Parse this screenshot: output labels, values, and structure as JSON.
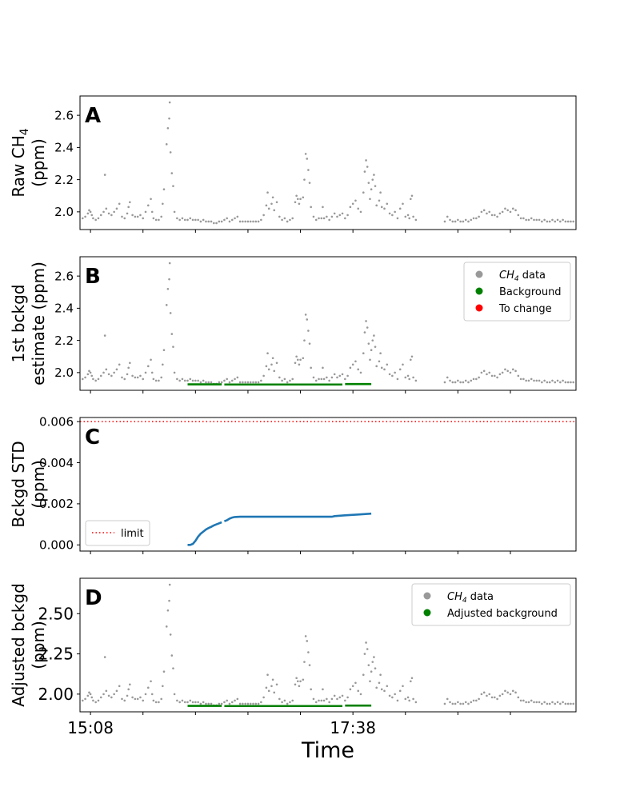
{
  "chart_data": [
    {
      "type": "scatter",
      "panel_letter": "A",
      "ylabel_lines": [
        "Raw CH",
        "(ppm)"
      ],
      "ylabel_sub": "4",
      "ylim": [
        1.89,
        2.72
      ],
      "yticks": [
        2.0,
        2.2,
        2.4,
        2.6
      ],
      "ytick_labels": [
        "2.0",
        "2.2",
        "2.4",
        "2.6"
      ],
      "xlim": [
        0,
        174
      ],
      "show_xtick_labels": false,
      "series": []
    },
    {
      "type": "scatter",
      "panel_letter": "B",
      "ylabel_lines": [
        "1st bckgd",
        "estimate (ppm)"
      ],
      "ylim": [
        1.89,
        2.72
      ],
      "yticks": [
        2.0,
        2.2,
        2.4,
        2.6
      ],
      "ytick_labels": [
        "2.0",
        "2.2",
        "2.4",
        "2.6"
      ],
      "xlim": [
        0,
        174
      ],
      "show_xtick_labels": false,
      "legend": {
        "placement": "top-right",
        "entries": [
          {
            "label": "data",
            "label_prefix": "CH",
            "label_sub": "4",
            "color": "#999999"
          },
          {
            "label": "Background",
            "color": "#008000"
          },
          {
            "label": "To change",
            "color": "#ff0000"
          }
        ]
      },
      "series": []
    },
    {
      "type": "line",
      "panel_letter": "C",
      "ylabel_lines": [
        "Bckgd STD",
        "(ppm)"
      ],
      "ylim": [
        -0.0003,
        0.0062
      ],
      "yticks": [
        0.0,
        0.002,
        0.004,
        0.006
      ],
      "ytick_labels": [
        "0.000",
        "0.002",
        "0.004",
        "0.006"
      ],
      "xlim": [
        0,
        174
      ],
      "show_xtick_labels": false,
      "limit_value": 0.006,
      "legend": {
        "placement": "lower-left",
        "entries": [
          {
            "label": "limit",
            "color": "#ff0000",
            "style": "dotted"
          }
        ]
      },
      "series": []
    },
    {
      "type": "scatter",
      "panel_letter": "D",
      "ylabel_lines": [
        "Adjusted bckgd",
        "(ppm)"
      ],
      "ylim": [
        1.89,
        2.72
      ],
      "yticks": [
        2.0,
        2.25,
        2.5
      ],
      "ytick_labels": [
        "2.00",
        "2.25",
        "2.50"
      ],
      "xlim": [
        0,
        174
      ],
      "show_xtick_labels": true,
      "xlabel": "Time",
      "xticks": [
        3,
        23,
        43,
        63,
        83,
        103,
        123,
        143,
        163
      ],
      "xtick_labels": [
        "15:08",
        "",
        "",
        "",
        "",
        "17:38",
        "",
        "",
        ""
      ],
      "legend": {
        "placement": "top-right",
        "entries": [
          {
            "label": "data",
            "label_prefix": "CH",
            "label_sub": "4",
            "color": "#999999"
          },
          {
            "label": "Adjusted background",
            "color": "#008000"
          }
        ]
      },
      "series": []
    }
  ],
  "colors": {
    "data": "#999999",
    "background": "#008000",
    "to_change": "#ff0000",
    "std_line": "#1f77b4",
    "limit": "#ff0000"
  },
  "raw_points": [
    [
      0,
      1.96
    ],
    [
      1,
      1.97
    ],
    [
      2,
      1.99
    ],
    [
      2.5,
      2.01
    ],
    [
      3,
      2.0
    ],
    [
      3.5,
      1.98
    ],
    [
      4,
      1.96
    ],
    [
      5,
      1.95
    ],
    [
      6,
      1.96
    ],
    [
      7,
      1.98
    ],
    [
      8,
      2.0
    ],
    [
      8.5,
      2.23
    ],
    [
      9,
      2.02
    ],
    [
      10,
      1.99
    ],
    [
      11,
      1.98
    ],
    [
      12,
      2.0
    ],
    [
      13,
      2.02
    ],
    [
      14,
      2.05
    ],
    [
      15,
      1.97
    ],
    [
      16,
      1.96
    ],
    [
      17,
      1.99
    ],
    [
      17.5,
      2.03
    ],
    [
      18,
      2.06
    ],
    [
      19,
      1.98
    ],
    [
      20,
      1.97
    ],
    [
      21,
      1.97
    ],
    [
      22,
      1.98
    ],
    [
      23,
      1.96
    ],
    [
      24,
      2.0
    ],
    [
      25,
      2.04
    ],
    [
      26,
      2.08
    ],
    [
      26.5,
      2.0
    ],
    [
      27,
      1.96
    ],
    [
      28,
      1.95
    ],
    [
      29,
      1.95
    ],
    [
      30,
      1.97
    ],
    [
      30.5,
      2.05
    ],
    [
      31,
      2.14
    ],
    [
      32,
      2.42
    ],
    [
      32.5,
      2.52
    ],
    [
      33,
      2.58
    ],
    [
      33.2,
      2.68
    ],
    [
      33.5,
      2.37
    ],
    [
      34,
      2.24
    ],
    [
      34.5,
      2.16
    ],
    [
      35,
      2.0
    ],
    [
      36,
      1.96
    ],
    [
      37,
      1.95
    ],
    [
      38,
      1.96
    ],
    [
      39,
      1.95
    ],
    [
      40,
      1.95
    ],
    [
      41,
      1.96
    ],
    [
      42,
      1.95
    ],
    [
      43,
      1.95
    ],
    [
      44,
      1.95
    ],
    [
      45,
      1.94
    ],
    [
      46,
      1.95
    ],
    [
      47,
      1.94
    ],
    [
      48,
      1.94
    ],
    [
      49,
      1.94
    ],
    [
      50,
      1.93
    ],
    [
      51,
      1.93
    ],
    [
      52,
      1.94
    ],
    [
      53,
      1.94
    ],
    [
      54,
      1.95
    ],
    [
      55,
      1.96
    ],
    [
      56,
      1.94
    ],
    [
      57,
      1.95
    ],
    [
      58,
      1.96
    ],
    [
      59,
      1.97
    ],
    [
      60,
      1.94
    ],
    [
      61,
      1.94
    ],
    [
      62,
      1.94
    ],
    [
      63,
      1.94
    ],
    [
      64,
      1.94
    ],
    [
      65,
      1.94
    ],
    [
      66,
      1.94
    ],
    [
      67,
      1.94
    ],
    [
      68,
      1.95
    ],
    [
      69,
      1.98
    ],
    [
      70,
      2.04
    ],
    [
      70.5,
      2.12
    ],
    [
      71,
      2.02
    ],
    [
      72,
      2.05
    ],
    [
      72.5,
      2.09
    ],
    [
      73,
      2.01
    ],
    [
      74,
      2.06
    ],
    [
      75,
      1.97
    ],
    [
      76,
      1.95
    ],
    [
      77,
      1.96
    ],
    [
      78,
      1.94
    ],
    [
      79,
      1.95
    ],
    [
      80,
      1.96
    ],
    [
      81,
      2.06
    ],
    [
      81.5,
      2.1
    ],
    [
      82,
      2.08
    ],
    [
      82.5,
      2.05
    ],
    [
      83,
      2.08
    ],
    [
      84,
      2.09
    ],
    [
      84.5,
      2.2
    ],
    [
      85,
      2.36
    ],
    [
      85.5,
      2.33
    ],
    [
      86,
      2.26
    ],
    [
      86.5,
      2.18
    ],
    [
      87,
      2.03
    ],
    [
      88,
      1.97
    ],
    [
      89,
      1.95
    ],
    [
      90,
      1.96
    ],
    [
      91,
      1.96
    ],
    [
      91.5,
      2.03
    ],
    [
      92,
      1.96
    ],
    [
      93,
      1.97
    ],
    [
      94,
      1.95
    ],
    [
      95,
      1.97
    ],
    [
      96,
      1.99
    ],
    [
      97,
      1.97
    ],
    [
      98,
      1.98
    ],
    [
      99,
      1.99
    ],
    [
      100,
      1.96
    ],
    [
      101,
      1.98
    ],
    [
      102,
      2.03
    ],
    [
      103,
      2.05
    ],
    [
      104,
      2.07
    ],
    [
      105,
      2.02
    ],
    [
      106,
      2.0
    ],
    [
      107,
      2.12
    ],
    [
      107.5,
      2.25
    ],
    [
      108,
      2.32
    ],
    [
      108.5,
      2.28
    ],
    [
      109,
      2.18
    ],
    [
      109.5,
      2.08
    ],
    [
      110,
      2.14
    ],
    [
      110.5,
      2.2
    ],
    [
      111,
      2.23
    ],
    [
      111.5,
      2.16
    ],
    [
      112,
      2.04
    ],
    [
      113,
      2.07
    ],
    [
      113.5,
      2.12
    ],
    [
      114,
      2.03
    ],
    [
      115,
      2.02
    ],
    [
      116,
      2.05
    ],
    [
      117,
      1.99
    ],
    [
      118,
      1.98
    ],
    [
      119,
      2.0
    ],
    [
      120,
      1.96
    ],
    [
      121,
      2.02
    ],
    [
      122,
      2.05
    ],
    [
      123,
      1.97
    ],
    [
      124,
      1.98
    ],
    [
      124.5,
      1.96
    ],
    [
      125,
      2.08
    ],
    [
      125.5,
      2.1
    ],
    [
      126,
      1.97
    ],
    [
      127,
      1.95
    ],
    [
      138,
      1.94
    ],
    [
      139,
      1.97
    ],
    [
      140,
      1.95
    ],
    [
      141,
      1.94
    ],
    [
      142,
      1.94
    ],
    [
      143,
      1.95
    ],
    [
      144,
      1.94
    ],
    [
      145,
      1.94
    ],
    [
      146,
      1.95
    ],
    [
      147,
      1.94
    ],
    [
      148,
      1.95
    ],
    [
      149,
      1.96
    ],
    [
      150,
      1.96
    ],
    [
      151,
      1.97
    ],
    [
      152,
      2.0
    ],
    [
      153,
      2.01
    ],
    [
      154,
      1.99
    ],
    [
      155,
      2.0
    ],
    [
      156,
      1.98
    ],
    [
      157,
      1.98
    ],
    [
      158,
      1.97
    ],
    [
      159,
      1.99
    ],
    [
      160,
      2.0
    ],
    [
      161,
      2.02
    ],
    [
      162,
      2.01
    ],
    [
      163,
      2.0
    ],
    [
      164,
      2.02
    ],
    [
      165,
      2.01
    ],
    [
      166,
      1.98
    ],
    [
      167,
      1.96
    ],
    [
      168,
      1.96
    ],
    [
      169,
      1.95
    ],
    [
      170,
      1.95
    ],
    [
      171,
      1.96
    ],
    [
      172,
      1.95
    ],
    [
      173,
      1.95
    ],
    [
      174,
      1.95
    ],
    [
      175,
      1.94
    ],
    [
      176,
      1.95
    ],
    [
      177,
      1.94
    ],
    [
      178,
      1.94
    ],
    [
      179,
      1.95
    ],
    [
      180,
      1.94
    ],
    [
      181,
      1.95
    ],
    [
      182,
      1.94
    ],
    [
      183,
      1.95
    ],
    [
      184,
      1.94
    ],
    [
      185,
      1.94
    ],
    [
      186,
      1.94
    ],
    [
      187,
      1.94
    ]
  ],
  "background_segments": [
    {
      "x": [
        40,
        53
      ],
      "y": [
        1.927,
        1.927
      ]
    },
    {
      "x": [
        54,
        99
      ],
      "y": [
        1.926,
        1.926
      ]
    },
    {
      "x": [
        100,
        110
      ],
      "y": [
        1.929,
        1.929
      ]
    }
  ],
  "std_segments": [
    {
      "x": [
        40,
        41,
        42,
        43,
        44,
        45,
        46,
        47,
        48,
        49,
        50,
        51,
        52,
        53
      ],
      "y": [
        0.0,
        0.0,
        5e-05,
        0.0002,
        0.0004,
        0.00055,
        0.00065,
        0.00075,
        0.00082,
        0.00088,
        0.00095,
        0.001,
        0.00105,
        0.0011
      ]
    },
    {
      "x": [
        54,
        55,
        56,
        57,
        58,
        60,
        65,
        70,
        80,
        90,
        95,
        96,
        100,
        105,
        110
      ],
      "y": [
        0.00115,
        0.0012,
        0.00128,
        0.00133,
        0.00136,
        0.00137,
        0.00137,
        0.00137,
        0.00137,
        0.00137,
        0.00137,
        0.0014,
        0.00144,
        0.00148,
        0.00152
      ]
    }
  ]
}
